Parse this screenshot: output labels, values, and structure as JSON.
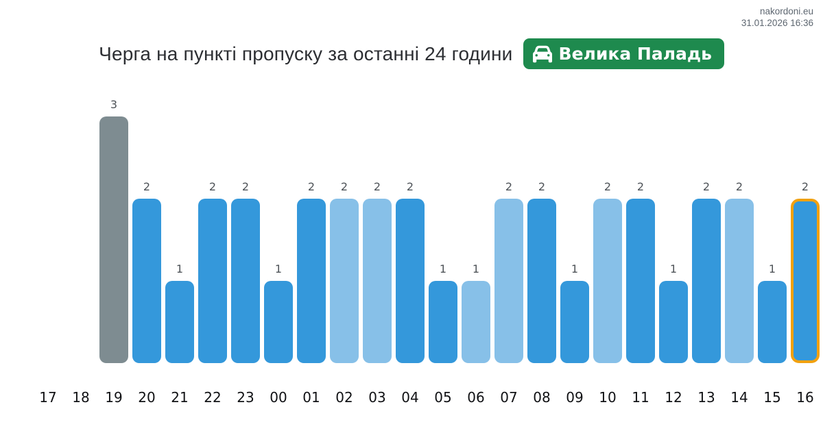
{
  "meta": {
    "site": "nakordoni.eu",
    "timestamp": "31.01.2026 16:36"
  },
  "title": "Черга на пункті пропуску за останні 24 години",
  "badge": {
    "label": "Велика Паладь",
    "icon": "car-front-icon",
    "color": "#1e8a4e"
  },
  "chart_data": {
    "type": "bar",
    "title": "Черга на пункті пропуску за останні 24 години",
    "xlabel": "",
    "ylabel": "",
    "ylim": [
      0,
      3
    ],
    "grid": false,
    "legend": false,
    "value_labels_shown": true,
    "categories": [
      "17",
      "18",
      "19",
      "20",
      "21",
      "22",
      "23",
      "00",
      "01",
      "02",
      "03",
      "04",
      "05",
      "06",
      "07",
      "08",
      "09",
      "10",
      "11",
      "12",
      "13",
      "14",
      "15",
      "16"
    ],
    "values": [
      0,
      0,
      3,
      2,
      1,
      2,
      2,
      1,
      2,
      2,
      2,
      2,
      1,
      1,
      2,
      2,
      1,
      2,
      2,
      1,
      2,
      2,
      1,
      2
    ],
    "bar_styles": [
      "none",
      "none",
      "gray",
      "dark",
      "dark",
      "dark",
      "dark",
      "dark",
      "dark",
      "light",
      "light",
      "dark",
      "dark",
      "light",
      "light",
      "dark",
      "dark",
      "light",
      "dark",
      "dark",
      "dark",
      "light",
      "dark",
      "current"
    ],
    "highlighted_category": "16",
    "colors": {
      "dark": "#3498db",
      "light": "#87c0e8",
      "gray": "#7e8c91",
      "current_border": "#f2a110"
    }
  }
}
